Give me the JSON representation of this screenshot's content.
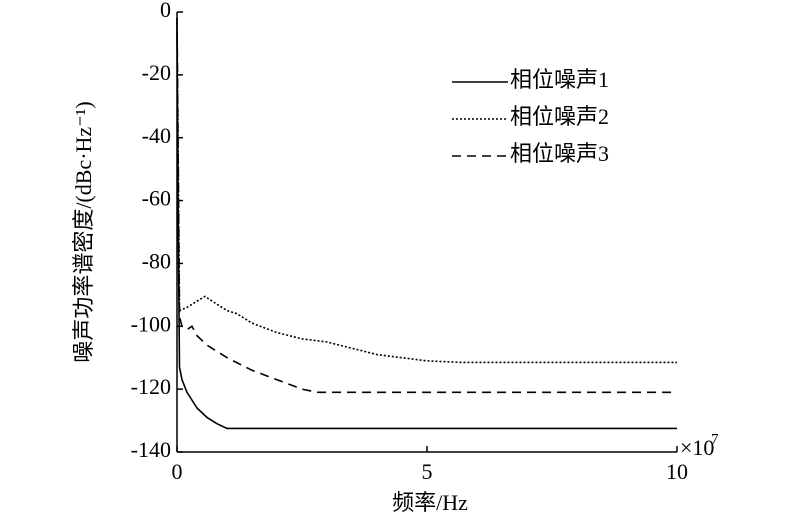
{
  "chart_data": {
    "type": "line",
    "x_label": "频率/Hz",
    "y_label": "噪声功率谱密度/(dBc·Hz⁻¹)",
    "x_multiplier": "×10",
    "x_exponent": "7",
    "xlim": [
      0,
      10
    ],
    "xticks": [
      0,
      5,
      10
    ],
    "ylim": [
      -140,
      0
    ],
    "yticks": [
      0,
      -20,
      -40,
      -60,
      -80,
      -100,
      -120,
      -140
    ],
    "legend": "upper right",
    "series": [
      {
        "name": "相位噪声1",
        "color": "#000000",
        "style": "solid",
        "x": [
          0,
          0.02,
          0.05,
          0.1,
          0.2,
          0.4,
          0.6,
          0.8,
          1.0,
          10
        ],
        "values": [
          -5,
          -60,
          -113,
          -117,
          -121,
          -126,
          -129,
          -131,
          -132.5,
          -132.5
        ]
      },
      {
        "name": "相位噪声2",
        "color": "#000000",
        "style": "dotted",
        "x": [
          0,
          0.05,
          0.2,
          0.4,
          0.56,
          0.8,
          1.0,
          1.2,
          1.5,
          2,
          2.5,
          3,
          3.5,
          4,
          5,
          5.7,
          10
        ],
        "values": [
          -2,
          -95,
          -94,
          -92,
          -90.5,
          -93,
          -95,
          -96,
          -99,
          -102,
          -104,
          -105,
          -107,
          -109,
          -111,
          -111.5,
          -111.5
        ]
      },
      {
        "name": "相位噪声3",
        "color": "#000000",
        "style": "dashed",
        "x": [
          0,
          0.05,
          0.1,
          0.2,
          0.3,
          0.4,
          0.6,
          1.0,
          1.5,
          2,
          2.5,
          2.8,
          10
        ],
        "values": [
          -2,
          -97,
          -100,
          -101,
          -100,
          -103,
          -106,
          -110,
          -114,
          -117,
          -120,
          -121,
          -121
        ]
      }
    ]
  }
}
